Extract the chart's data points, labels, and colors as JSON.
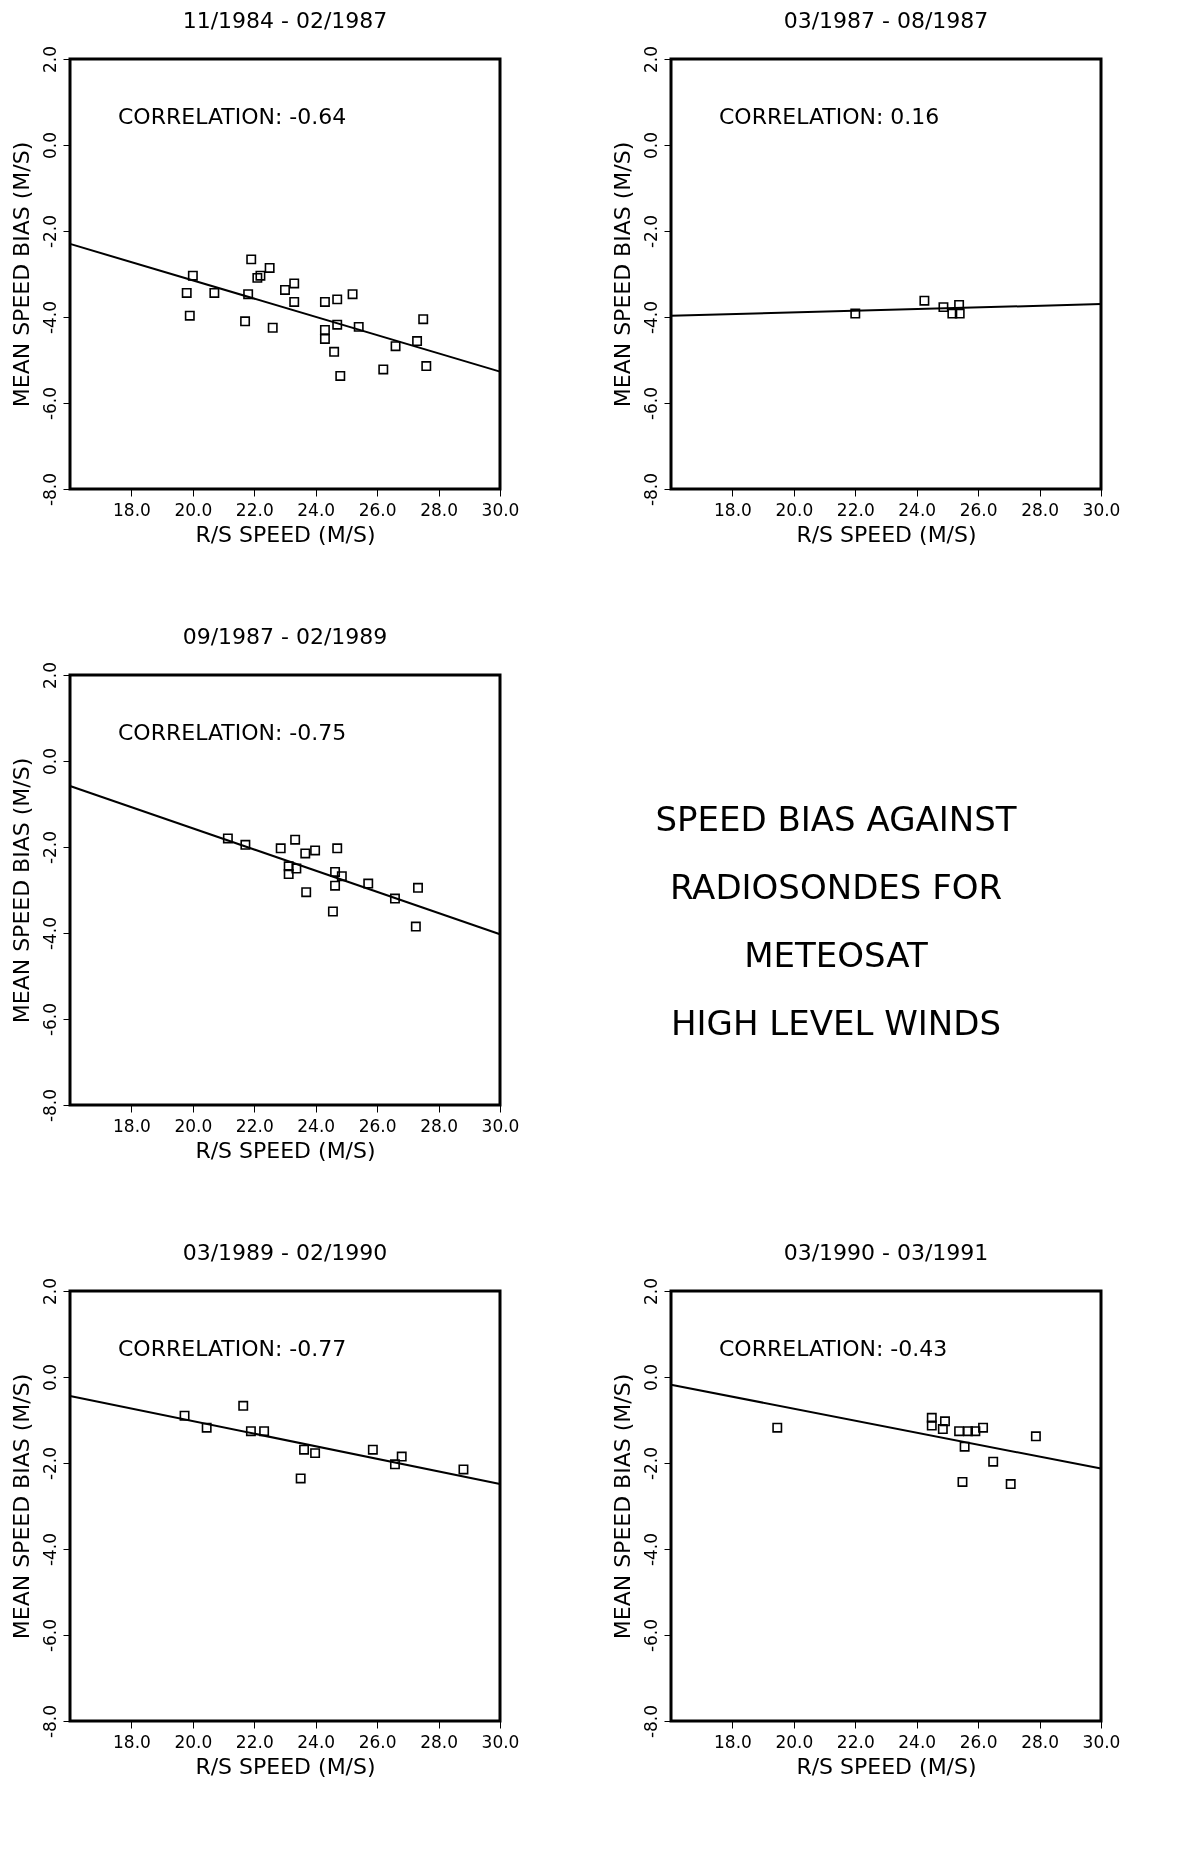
{
  "chart_data": [
    {
      "type": "scatter",
      "title": "11/1984 - 02/1987",
      "xlabel": "R/S SPEED (M/S)",
      "ylabel": "MEAN SPEED BIAS (M/S)",
      "annotations": [
        "CORRELATION: -0.64"
      ],
      "xlim": [
        16,
        30
      ],
      "ylim": [
        -8,
        2
      ],
      "xticks": [
        {
          "value": 18,
          "label": "18.0"
        },
        {
          "value": 20,
          "label": "20.0"
        },
        {
          "value": 22,
          "label": "22.0"
        },
        {
          "value": 24,
          "label": "24.0"
        },
        {
          "value": 26,
          "label": "26.0"
        },
        {
          "value": 28,
          "label": "28.0"
        },
        {
          "value": 30,
          "label": "30.0"
        }
      ],
      "yticks": [
        {
          "value": -8,
          "label": "-8.0"
        },
        {
          "value": -6,
          "label": "-6.0"
        },
        {
          "value": -4,
          "label": "-4.0"
        },
        {
          "value": -2,
          "label": "-2.0"
        },
        {
          "value": 0,
          "label": "0.0"
        },
        {
          "value": 2,
          "label": "2.0"
        }
      ],
      "grid": false,
      "series": [
        {
          "color": "#000000",
          "marker": "square",
          "x": [
            19.8,
            20.0,
            19.9,
            20.7,
            21.9,
            21.8,
            21.7,
            22.1,
            22.2,
            22.5,
            22.6,
            23.0,
            23.3,
            23.3,
            24.3,
            24.3,
            24.3,
            24.7,
            24.7,
            25.2,
            24.6,
            24.8,
            25.4,
            26.2,
            26.6,
            27.3,
            27.5,
            27.6
          ],
          "values": [
            -3.44,
            -3.04,
            -3.97,
            -3.44,
            -2.66,
            -3.47,
            -4.1,
            -3.09,
            -3.04,
            -2.86,
            -4.25,
            -3.37,
            -3.22,
            -3.65,
            -3.65,
            -4.3,
            -4.51,
            -3.59,
            -4.18,
            -3.47,
            -4.81,
            -5.37,
            -4.23,
            -5.22,
            -4.68,
            -4.56,
            -4.05,
            -5.14
          ]
        },
        {
          "type": "line",
          "color": "#000000",
          "marker": "none",
          "line_style": "solid",
          "x": [
            16,
            30
          ],
          "values": [
            -2.3,
            -5.27
          ]
        }
      ]
    },
    {
      "type": "scatter",
      "title": "03/1987 - 08/1987",
      "xlabel": "R/S SPEED (M/S)",
      "ylabel": "MEAN SPEED BIAS (M/S)",
      "annotations": [
        "CORRELATION: 0.16"
      ],
      "xlim": [
        16,
        30
      ],
      "ylim": [
        -8,
        2
      ],
      "xticks": [
        {
          "value": 18,
          "label": "18.0"
        },
        {
          "value": 20,
          "label": "20.0"
        },
        {
          "value": 22,
          "label": "22.0"
        },
        {
          "value": 24,
          "label": "24.0"
        },
        {
          "value": 26,
          "label": "26.0"
        },
        {
          "value": 28,
          "label": "28.0"
        },
        {
          "value": 30,
          "label": "30.0"
        }
      ],
      "yticks": [
        {
          "value": -8,
          "label": "-8.0"
        },
        {
          "value": -6,
          "label": "-6.0"
        },
        {
          "value": -4,
          "label": "-4.0"
        },
        {
          "value": -2,
          "label": "-2.0"
        },
        {
          "value": 0,
          "label": "0.0"
        },
        {
          "value": 2,
          "label": "2.0"
        }
      ],
      "grid": false,
      "series": [
        {
          "color": "#000000",
          "marker": "square",
          "x": [
            22.0,
            24.25,
            24.87,
            25.16,
            25.38,
            25.4
          ],
          "values": [
            -3.92,
            -3.62,
            -3.77,
            -3.92,
            -3.72,
            -3.92
          ]
        },
        {
          "type": "line",
          "color": "#000000",
          "marker": "none",
          "line_style": "solid",
          "x": [
            16,
            30
          ],
          "values": [
            -3.97,
            -3.7
          ]
        }
      ]
    },
    {
      "type": "scatter",
      "title": "09/1987 - 02/1989",
      "xlabel": "R/S SPEED (M/S)",
      "ylabel": "MEAN SPEED BIAS (M/S)",
      "annotations": [
        "CORRELATION: -0.75"
      ],
      "xlim": [
        16,
        30
      ],
      "ylim": [
        -8,
        2
      ],
      "xticks": [
        {
          "value": 18,
          "label": "18.0"
        },
        {
          "value": 20,
          "label": "20.0"
        },
        {
          "value": 22,
          "label": "22.0"
        },
        {
          "value": 24,
          "label": "24.0"
        },
        {
          "value": 26,
          "label": "26.0"
        },
        {
          "value": 28,
          "label": "28.0"
        },
        {
          "value": 30,
          "label": "30.0"
        }
      ],
      "yticks": [
        {
          "value": -8,
          "label": "-8.0"
        },
        {
          "value": -6,
          "label": "-6.0"
        },
        {
          "value": -4,
          "label": "-4.0"
        },
        {
          "value": -2,
          "label": "-2.0"
        },
        {
          "value": 0,
          "label": "0.0"
        },
        {
          "value": 2,
          "label": "2.0"
        }
      ],
      "grid": false,
      "series": [
        {
          "color": "#000000",
          "marker": "square",
          "x": [
            21.14,
            21.71,
            22.86,
            23.12,
            23.12,
            23.37,
            23.33,
            23.66,
            23.69,
            23.98,
            24.56,
            24.63,
            24.7,
            24.63,
            24.85,
            25.71,
            26.58,
            27.33,
            27.26
          ],
          "values": [
            -1.8,
            -1.95,
            -2.03,
            -2.63,
            -2.45,
            -2.5,
            -1.83,
            -2.15,
            -3.05,
            -2.08,
            -3.5,
            -2.58,
            -2.03,
            -2.9,
            -2.68,
            -2.85,
            -3.2,
            -2.95,
            -3.85
          ]
        },
        {
          "type": "line",
          "color": "#000000",
          "marker": "none",
          "line_style": "solid",
          "x": [
            16,
            30
          ],
          "values": [
            -0.58,
            -4.03
          ]
        }
      ]
    },
    {
      "type": "other",
      "annotations": [
        "SPEED BIAS AGAINST",
        "RADIOSONDES FOR",
        "METEOSAT",
        "HIGH LEVEL WINDS"
      ]
    },
    {
      "type": "scatter",
      "title": "03/1989 - 02/1990",
      "xlabel": "R/S SPEED (M/S)",
      "ylabel": "MEAN SPEED BIAS (M/S)",
      "annotations": [
        "CORRELATION: -0.77"
      ],
      "xlim": [
        16,
        30
      ],
      "ylim": [
        -8,
        2
      ],
      "xticks": [
        {
          "value": 18,
          "label": "18.0"
        },
        {
          "value": 20,
          "label": "20.0"
        },
        {
          "value": 22,
          "label": "22.0"
        },
        {
          "value": 24,
          "label": "24.0"
        },
        {
          "value": 26,
          "label": "26.0"
        },
        {
          "value": 28,
          "label": "28.0"
        },
        {
          "value": 30,
          "label": "30.0"
        }
      ],
      "yticks": [
        {
          "value": -8,
          "label": "-8.0"
        },
        {
          "value": -6,
          "label": "-6.0"
        },
        {
          "value": -4,
          "label": "-4.0"
        },
        {
          "value": -2,
          "label": "-2.0"
        },
        {
          "value": 0,
          "label": "0.0"
        },
        {
          "value": 2,
          "label": "2.0"
        }
      ],
      "grid": false,
      "series": [
        {
          "color": "#000000",
          "marker": "square",
          "x": [
            19.73,
            20.45,
            21.64,
            21.89,
            22.32,
            23.62,
            23.98,
            23.51,
            25.86,
            26.58,
            26.8,
            28.81
          ],
          "values": [
            -0.9,
            -1.18,
            -0.67,
            -1.26,
            -1.26,
            -1.69,
            -1.77,
            -2.36,
            -1.69,
            -2.03,
            -1.85,
            -2.15
          ]
        },
        {
          "type": "line",
          "color": "#000000",
          "marker": "none",
          "line_style": "solid",
          "x": [
            16,
            30
          ],
          "values": [
            -0.44,
            -2.49
          ]
        }
      ]
    },
    {
      "type": "scatter",
      "title": "03/1990 - 03/1991",
      "xlabel": "R/S SPEED (M/S)",
      "ylabel": "MEAN SPEED BIAS (M/S)",
      "annotations": [
        "CORRELATION: -0.43"
      ],
      "xlim": [
        16,
        30
      ],
      "ylim": [
        -8,
        2
      ],
      "xticks": [
        {
          "value": 18,
          "label": "18.0"
        },
        {
          "value": 20,
          "label": "20.0"
        },
        {
          "value": 22,
          "label": "22.0"
        },
        {
          "value": 24,
          "label": "24.0"
        },
        {
          "value": 26,
          "label": "26.0"
        },
        {
          "value": 28,
          "label": "28.0"
        },
        {
          "value": 30,
          "label": "30.0"
        }
      ],
      "yticks": [
        {
          "value": -8,
          "label": "-8.0"
        },
        {
          "value": -6,
          "label": "-6.0"
        },
        {
          "value": -4,
          "label": "-4.0"
        },
        {
          "value": -2,
          "label": "-2.0"
        },
        {
          "value": 0,
          "label": "0.0"
        },
        {
          "value": 2,
          "label": "2.0"
        }
      ],
      "grid": false,
      "series": [
        {
          "color": "#000000",
          "marker": "square",
          "x": [
            19.46,
            24.49,
            24.49,
            24.92,
            24.85,
            25.38,
            25.67,
            25.56,
            25.91,
            26.16,
            25.49,
            26.49,
            27.06,
            27.88
          ],
          "values": [
            -1.18,
            -0.95,
            -1.13,
            -1.03,
            -1.21,
            -1.26,
            -1.26,
            -1.62,
            -1.26,
            -1.18,
            -2.44,
            -1.97,
            -2.49,
            -1.38
          ]
        },
        {
          "type": "line",
          "color": "#000000",
          "marker": "none",
          "line_style": "solid",
          "x": [
            16,
            30
          ],
          "values": [
            -0.18,
            -2.13
          ]
        }
      ]
    }
  ]
}
